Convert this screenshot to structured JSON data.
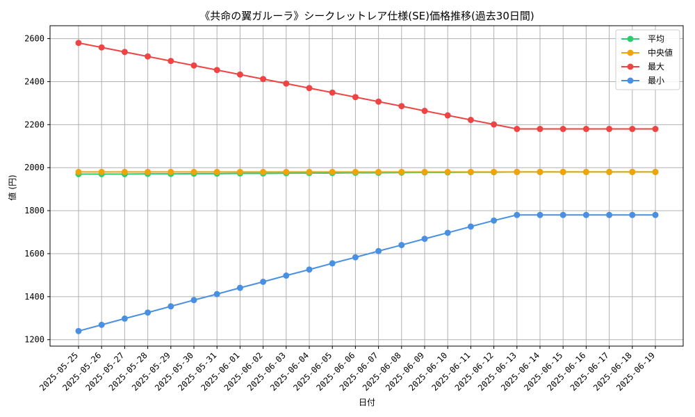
{
  "chart_data": {
    "type": "line",
    "title": "《共命の翼ガルーラ》シークレットレア仕様(SE)価格推移(過去30日間)",
    "xlabel": "日付",
    "ylabel": "値 (円)",
    "ylim": [
      1170,
      2660
    ],
    "yticks": [
      1200,
      1400,
      1600,
      1800,
      2000,
      2200,
      2400,
      2600
    ],
    "grid": true,
    "legend_position": "top-right",
    "categories": [
      "2025-05-25",
      "2025-05-26",
      "2025-05-27",
      "2025-05-28",
      "2025-05-29",
      "2025-05-30",
      "2025-05-31",
      "2025-06-01",
      "2025-06-02",
      "2025-06-03",
      "2025-06-04",
      "2025-06-05",
      "2025-06-06",
      "2025-06-07",
      "2025-06-08",
      "2025-06-09",
      "2025-06-10",
      "2025-06-11",
      "2025-06-12",
      "2025-06-13",
      "2025-06-14",
      "2025-06-15",
      "2025-06-16",
      "2025-06-17",
      "2025-06-18",
      "2025-06-19"
    ],
    "series": [
      {
        "name": "平均",
        "color": "#2ecc71",
        "values": [
          1970,
          1970,
          1970,
          1971,
          1971,
          1972,
          1972,
          1973,
          1973,
          1974,
          1975,
          1975,
          1976,
          1976,
          1977,
          1978,
          1978,
          1979,
          1979,
          1980,
          1980,
          1980,
          1980,
          1980,
          1980,
          1980
        ]
      },
      {
        "name": "中央値",
        "color": "#f0a30a",
        "values": [
          1980,
          1980,
          1980,
          1980,
          1980,
          1980,
          1980,
          1980,
          1980,
          1980,
          1980,
          1980,
          1980,
          1980,
          1980,
          1980,
          1980,
          1980,
          1980,
          1980,
          1980,
          1980,
          1980,
          1980,
          1980,
          1980
        ]
      },
      {
        "name": "最大",
        "color": "#ef4444",
        "values": [
          2580,
          2559,
          2538,
          2517,
          2496,
          2475,
          2454,
          2433,
          2412,
          2391,
          2370,
          2349,
          2328,
          2307,
          2286,
          2264,
          2243,
          2222,
          2201,
          2180,
          2180,
          2180,
          2180,
          2180,
          2180,
          2180
        ]
      },
      {
        "name": "最小",
        "color": "#4a90e2",
        "values": [
          1240,
          1269,
          1298,
          1326,
          1355,
          1384,
          1412,
          1441,
          1469,
          1498,
          1526,
          1555,
          1583,
          1612,
          1640,
          1669,
          1697,
          1726,
          1754,
          1780,
          1780,
          1780,
          1780,
          1780,
          1780,
          1780
        ]
      }
    ]
  }
}
